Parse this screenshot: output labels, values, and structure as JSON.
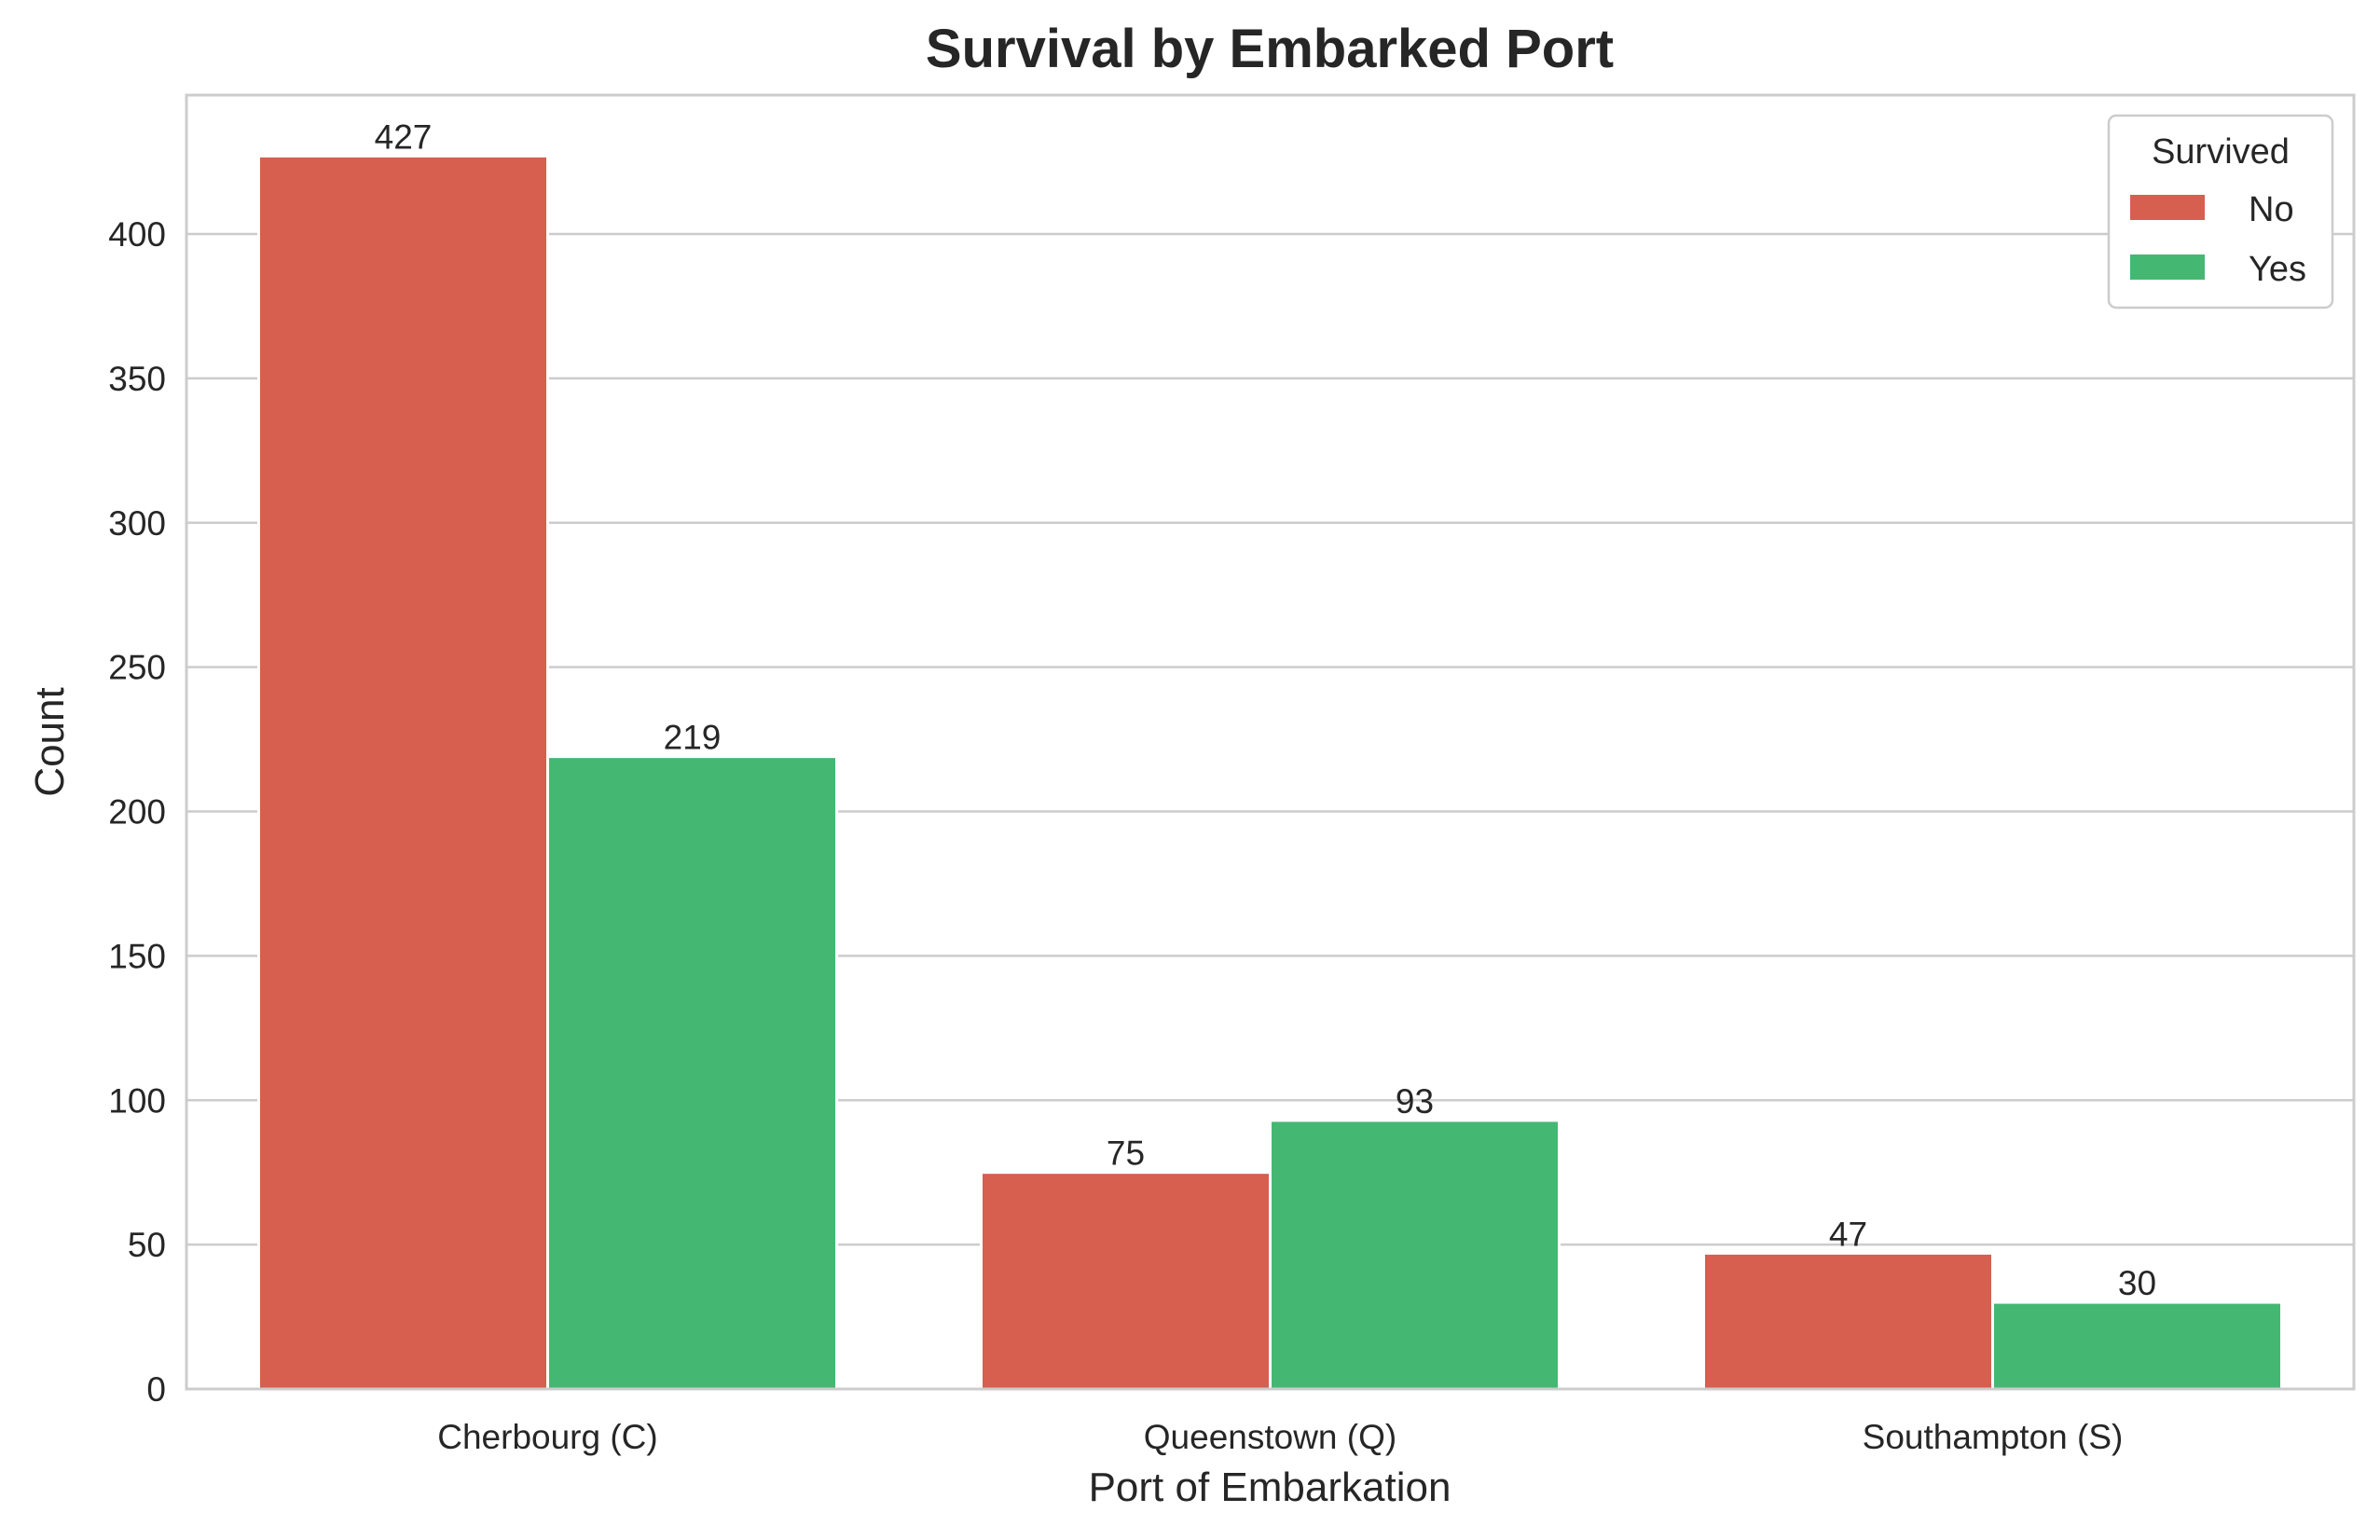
{
  "chart_data": {
    "type": "bar",
    "title": "Survival by Embarked Port",
    "xlabel": "Port of Embarkation",
    "ylabel": "Count",
    "categories": [
      "Cherbourg (C)",
      "Queenstown (Q)",
      "Southampton (S)"
    ],
    "series": [
      {
        "name": "No",
        "color": "#d65f50",
        "values": [
          427,
          75,
          47
        ]
      },
      {
        "name": "Yes",
        "color": "#44b873",
        "values": [
          219,
          93,
          30
        ]
      }
    ],
    "ylim": [
      0,
      450
    ],
    "yticks": [
      0,
      50,
      100,
      150,
      200,
      250,
      300,
      350,
      400
    ],
    "grid": true,
    "legend": {
      "title": "Survived",
      "placement": "top-right"
    }
  }
}
